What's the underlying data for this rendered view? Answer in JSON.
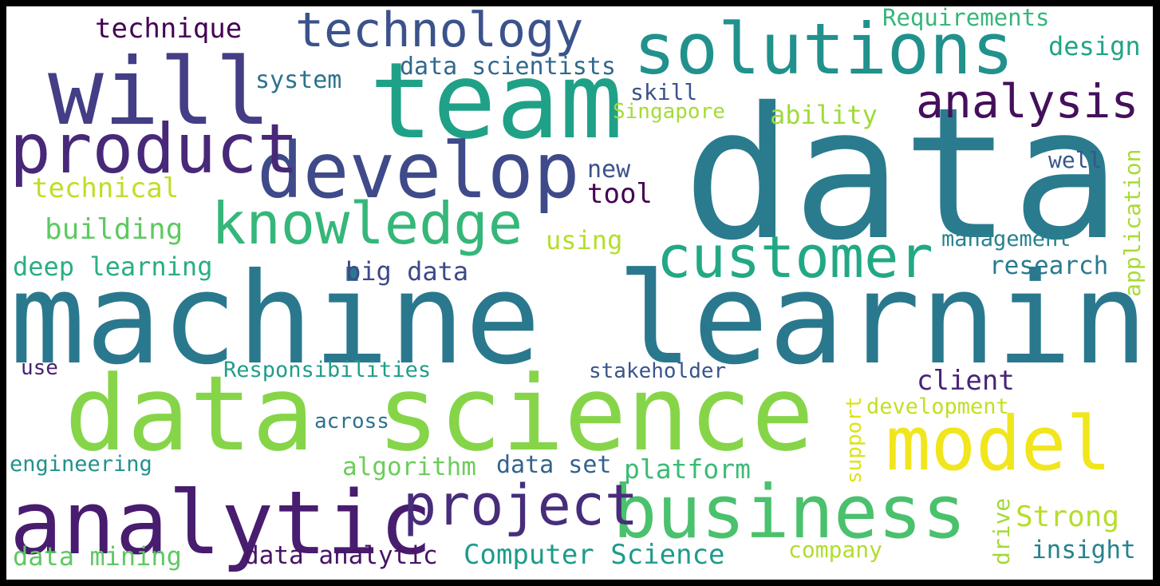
{
  "words": {
    "data": {
      "text": "data",
      "color": "#2a7b8e"
    },
    "machine_learning": {
      "text": "machine learning",
      "color": "#2a788e"
    },
    "team": {
      "text": "team",
      "color": "#1fa187"
    },
    "data_science": {
      "text": "data science",
      "color": "#86d549"
    },
    "solutions": {
      "text": "solutions",
      "color": "#21918c"
    },
    "will": {
      "text": "will",
      "color": "#433e85"
    },
    "develop": {
      "text": "develop",
      "color": "#3e4a89"
    },
    "product": {
      "text": "product",
      "color": "#482878"
    },
    "analytic": {
      "text": "analytic",
      "color": "#481c6e"
    },
    "business": {
      "text": "business",
      "color": "#4ac16d"
    },
    "model": {
      "text": "model",
      "color": "#f1e51d"
    },
    "customer": {
      "text": "customer",
      "color": "#22a884"
    },
    "knowledge": {
      "text": "knowledge",
      "color": "#35b779"
    },
    "technology": {
      "text": "technology",
      "color": "#3b528b"
    },
    "analysis": {
      "text": "analysis",
      "color": "#440f5b"
    },
    "project": {
      "text": "project",
      "color": "#472d7b"
    },
    "technique": {
      "text": "technique",
      "color": "#440154"
    },
    "requirements": {
      "text": "Requirements",
      "color": "#35b779"
    },
    "design": {
      "text": "design",
      "color": "#20a486"
    },
    "data_scientists": {
      "text": "data scientists",
      "color": "#31688e"
    },
    "system": {
      "text": "system",
      "color": "#2c728e"
    },
    "skill": {
      "text": "skill",
      "color": "#3b528b"
    },
    "singapore": {
      "text": "Singapore",
      "color": "#a5db36"
    },
    "ability": {
      "text": "ability",
      "color": "#a0da39"
    },
    "well": {
      "text": "well",
      "color": "#39568c"
    },
    "application": {
      "text": "application",
      "color": "#a8db34"
    },
    "technical": {
      "text": "technical",
      "color": "#bddf26"
    },
    "new": {
      "text": "new",
      "color": "#3b528b"
    },
    "tool": {
      "text": "tool",
      "color": "#440154"
    },
    "building": {
      "text": "building",
      "color": "#5ec962"
    },
    "using": {
      "text": "using",
      "color": "#b5de2b"
    },
    "management": {
      "text": "management",
      "color": "#26828e"
    },
    "research": {
      "text": "research",
      "color": "#2a7b8e"
    },
    "deep_learning": {
      "text": "deep learning",
      "color": "#29af7f"
    },
    "big_data": {
      "text": "big data",
      "color": "#3e4989"
    },
    "use": {
      "text": "use",
      "color": "#482173"
    },
    "responsibilities": {
      "text": "Responsibilities",
      "color": "#1f9e89"
    },
    "stakeholder": {
      "text": "stakeholder",
      "color": "#39558c"
    },
    "client": {
      "text": "client",
      "color": "#482475"
    },
    "support": {
      "text": "support",
      "color": "#dde318"
    },
    "development": {
      "text": "development",
      "color": "#c2df23"
    },
    "across": {
      "text": "across",
      "color": "#2c728e"
    },
    "engineering": {
      "text": "engineering",
      "color": "#21918c"
    },
    "algorithm": {
      "text": "algorithm",
      "color": "#6ccd5a"
    },
    "data_set": {
      "text": "data set",
      "color": "#33638d"
    },
    "platform": {
      "text": "platform",
      "color": "#3bbb75"
    },
    "strong": {
      "text": "Strong",
      "color": "#b5de2b"
    },
    "drive": {
      "text": "drive",
      "color": "#a2da37"
    },
    "data_mining": {
      "text": "data mining",
      "color": "#5ec962"
    },
    "data_analytic": {
      "text": "data analytic",
      "color": "#481467"
    },
    "computer_science": {
      "text": "Computer Science",
      "color": "#1e9b8a"
    },
    "company": {
      "text": "company",
      "color": "#b0dd2f"
    },
    "insight": {
      "text": "insight",
      "color": "#26828e"
    }
  }
}
